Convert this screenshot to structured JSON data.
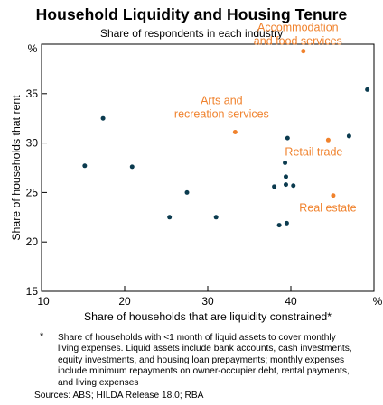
{
  "chart_data": {
    "type": "scatter",
    "title": "Household Liquidity and Housing Tenure",
    "subtitle": "Share of respondents in each industry",
    "xlabel": "Share of households that are liquidity constrained*",
    "ylabel": "Share of households that rent",
    "x_unit": "%",
    "y_unit": "%",
    "xlim": [
      10,
      50
    ],
    "ylim": [
      15,
      40
    ],
    "xticks": [
      10,
      20,
      30,
      40
    ],
    "yticks": [
      15,
      20,
      25,
      30,
      35
    ],
    "grid": false,
    "colors": {
      "highlight": "#f0822d",
      "other": "#0b3b4f"
    },
    "series": [
      {
        "name": "",
        "role": "other",
        "x": [
          15.2,
          17.4,
          20.9,
          25.4,
          27.5,
          31.0,
          38.0,
          38.6,
          39.3,
          39.4,
          39.4,
          39.5,
          39.6,
          40.3,
          47.0,
          49.2
        ],
        "y": [
          27.7,
          32.5,
          27.6,
          22.5,
          25.0,
          22.5,
          25.6,
          21.7,
          28.0,
          26.6,
          25.8,
          21.9,
          30.5,
          25.7,
          30.7,
          35.4
        ]
      },
      {
        "name": "",
        "role": "highlight",
        "x": [
          33.3,
          41.5,
          44.5,
          45.1
        ],
        "y": [
          31.1,
          39.3,
          30.3,
          24.7
        ],
        "labels": [
          "Arts and\nrecreation services",
          "Accommodation\nand food services",
          "Retail trade",
          "Real estate"
        ]
      }
    ]
  },
  "footnote": {
    "marker": "*",
    "text": "Share of households with <1 month of liquid assets to cover monthly living expenses. Liquid assets include bank accounts, cash investments, equity investments, and housing loan prepayments; monthly expenses include minimum repayments on owner-occupier debt, rental payments, and living expenses"
  },
  "sources": "Sources: ABS; HILDA Release 18.0; RBA"
}
